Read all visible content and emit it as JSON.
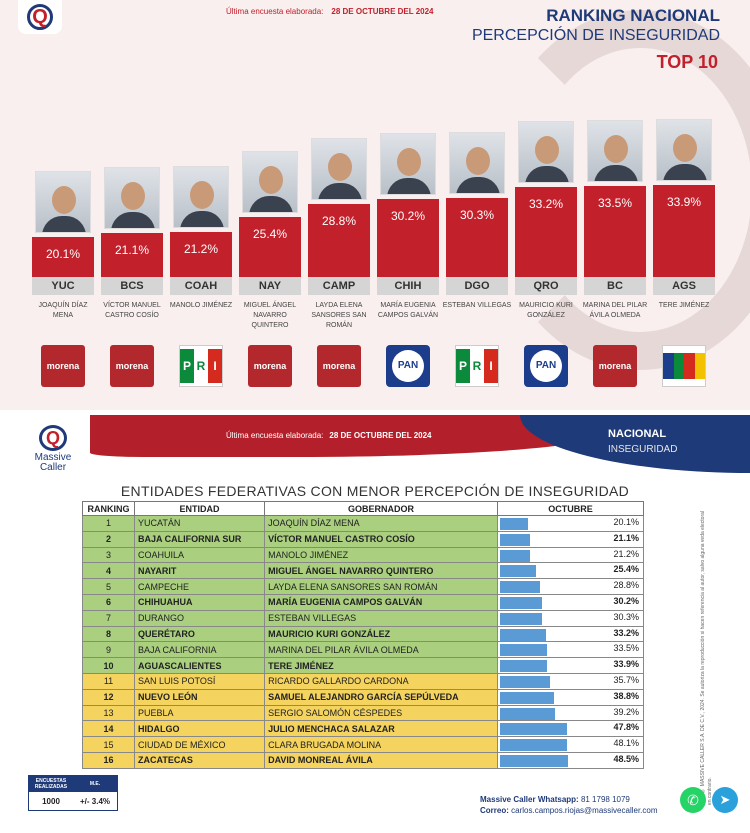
{
  "top": {
    "survey_label": "Última encuesta elaborada:",
    "survey_date": "28 DE OCTUBRE DEL 2024",
    "title_line1": "RANKING NACIONAL",
    "title_line2": "PERCEPCIÓN DE INSEGURIDAD",
    "title_line3": "TOP 10"
  },
  "chart_data": {
    "type": "bar",
    "title": "RANKING NACIONAL — PERCEPCIÓN DE INSEGURIDAD — TOP 10",
    "categories": [
      "YUC",
      "BCS",
      "COAH",
      "NAY",
      "CAMP",
      "CHIH",
      "DGO",
      "QRO",
      "BC",
      "AGS"
    ],
    "values": [
      20.1,
      21.1,
      21.2,
      25.4,
      28.8,
      30.2,
      30.3,
      33.2,
      33.5,
      33.9
    ],
    "value_labels": [
      "20.1%",
      "21.1%",
      "21.2%",
      "25.4%",
      "28.8%",
      "30.2%",
      "30.3%",
      "33.2%",
      "33.5%",
      "33.9%"
    ],
    "governors": [
      "JOAQUÍN DÍAZ MENA",
      "VÍCTOR MANUEL CASTRO COSÍO",
      "MANOLO JIMÉNEZ",
      "MIGUEL ÁNGEL NAVARRO QUINTERO",
      "LAYDA ELENA SANSORES SAN ROMÁN",
      "MARÍA EUGENIA CAMPOS GALVÁN",
      "ESTEBAN VILLEGAS",
      "MAURICIO KURI GONZÁLEZ",
      "MARINA DEL PILAR ÁVILA OLMEDA",
      "TERE JIMÉNEZ"
    ],
    "parties": [
      "morena",
      "morena",
      "PRI",
      "morena",
      "morena",
      "PAN",
      "PRI",
      "PAN",
      "morena",
      "coalition"
    ],
    "ylim": [
      0,
      40
    ]
  },
  "parties_text": {
    "morena": "morena",
    "pri": [
      "P",
      "R",
      "I"
    ],
    "pan": "PAN"
  },
  "bottom": {
    "brand": "Massive Caller",
    "survey_label": "Última encuesta elaborada:",
    "survey_date": "28 DE OCTUBRE DEL 2024",
    "nacional": "NACIONAL",
    "inseguridad": "INSEGURIDAD",
    "table_title": "ENTIDADES FEDERATIVAS CON MENOR PERCEPCIÓN DE INSEGURIDAD",
    "headers": [
      "RANKING",
      "ENTIDAD",
      "GOBERNADOR",
      "OCTUBRE"
    ],
    "rows": [
      {
        "rank": "1",
        "entity": "YUCATÁN",
        "governor": "JOAQUÍN DÍAZ MENA",
        "value": 20.1,
        "label": "20.1%"
      },
      {
        "rank": "2",
        "entity": "BAJA CALIFORNIA SUR",
        "governor": "VÍCTOR MANUEL CASTRO COSÍO",
        "value": 21.1,
        "label": "21.1%"
      },
      {
        "rank": "3",
        "entity": "COAHUILA",
        "governor": "MANOLO JIMÉNEZ",
        "value": 21.2,
        "label": "21.2%"
      },
      {
        "rank": "4",
        "entity": "NAYARIT",
        "governor": "MIGUEL ÁNGEL NAVARRO QUINTERO",
        "value": 25.4,
        "label": "25.4%"
      },
      {
        "rank": "5",
        "entity": "CAMPECHE",
        "governor": "LAYDA ELENA SANSORES SAN ROMÁN",
        "value": 28.8,
        "label": "28.8%"
      },
      {
        "rank": "6",
        "entity": "CHIHUAHUA",
        "governor": "MARÍA EUGENIA CAMPOS GALVÁN",
        "value": 30.2,
        "label": "30.2%"
      },
      {
        "rank": "7",
        "entity": "DURANGO",
        "governor": "ESTEBAN VILLEGAS",
        "value": 30.3,
        "label": "30.3%"
      },
      {
        "rank": "8",
        "entity": "QUERÉTARO",
        "governor": "MAURICIO KURI GONZÁLEZ",
        "value": 33.2,
        "label": "33.2%"
      },
      {
        "rank": "9",
        "entity": "BAJA CALIFORNIA",
        "governor": "MARINA DEL PILAR ÁVILA OLMEDA",
        "value": 33.5,
        "label": "33.5%"
      },
      {
        "rank": "10",
        "entity": "AGUASCALIENTES",
        "governor": "TERE JIMÉNEZ",
        "value": 33.9,
        "label": "33.9%"
      },
      {
        "rank": "11",
        "entity": "SAN LUIS POTOSÍ",
        "governor": "RICARDO GALLARDO CARDONA",
        "value": 35.7,
        "label": "35.7%"
      },
      {
        "rank": "12",
        "entity": "NUEVO LEÓN",
        "governor": "SAMUEL ALEJANDRO GARCÍA SEPÚLVEDA",
        "value": 38.8,
        "label": "38.8%"
      },
      {
        "rank": "13",
        "entity": "PUEBLA",
        "governor": "SERGIO SALOMÓN CÉSPEDES",
        "value": 39.2,
        "label": "39.2%"
      },
      {
        "rank": "14",
        "entity": "HIDALGO",
        "governor": "JULIO MENCHACA SALAZAR",
        "value": 47.8,
        "label": "47.8%"
      },
      {
        "rank": "15",
        "entity": "CIUDAD DE MÉXICO",
        "governor": "CLARA BRUGADA MOLINA",
        "value": 48.1,
        "label": "48.1%"
      },
      {
        "rank": "16",
        "entity": "ZACATECAS",
        "governor": "DAVID MONREAL ÁVILA",
        "value": 48.5,
        "label": "48.5%"
      }
    ],
    "side_note": "D.R. © MASSIVE CALLER S.A. DE C.V., 2024. Se autoriza la reproducción si hacen referencia al autor, salvo alguna veda electoral en contrario.",
    "enc_headers": [
      "ENCUESTAS REALIZADAS",
      "M.E."
    ],
    "enc_values": [
      "1000",
      "+/- 3.4%"
    ],
    "whatsapp_label": "Massive Caller Whatsapp:",
    "whatsapp_number": "81 1798 1079",
    "correo_label": "Correo:",
    "correo_value": "carlos.campos.riojas@massivecaller.com"
  }
}
